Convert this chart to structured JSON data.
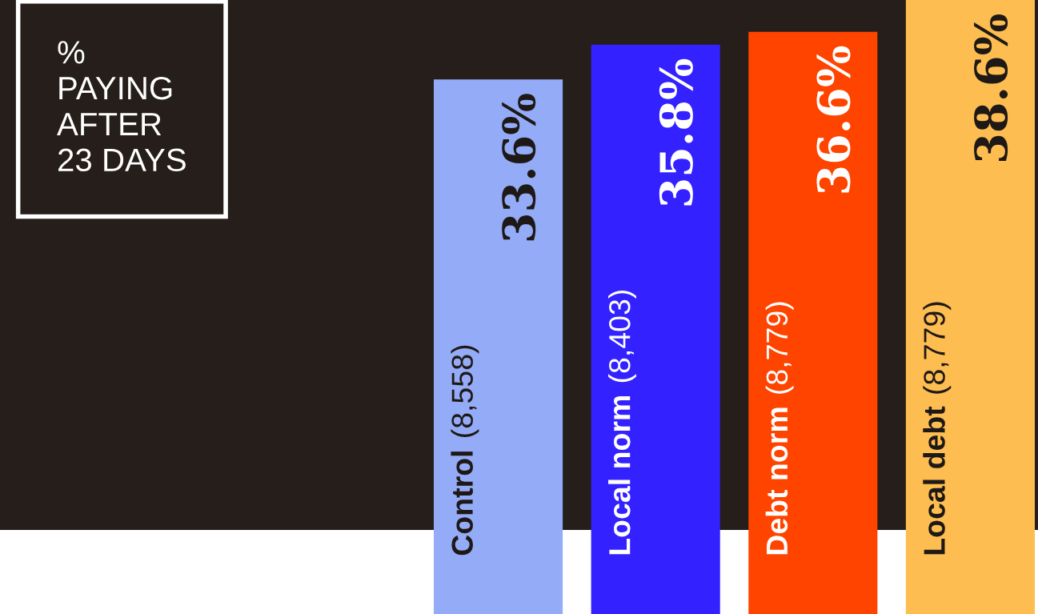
{
  "chart_data": {
    "type": "bar",
    "title": "%\nPAYING\nAFTER\n23 DAYS",
    "categories": [
      "Control (8,558)",
      "Local norm (8,403)",
      "Debt norm (8,779)",
      "Local debt (8,779)"
    ],
    "values": [
      33.6,
      35.8,
      36.6,
      38.6
    ],
    "colors": [
      "#94abf7",
      "#3322ff",
      "#ff4400",
      "#fdbd50"
    ],
    "value_labels": [
      "33.6%",
      "35.8%",
      "36.6%",
      "38.6%"
    ]
  }
}
